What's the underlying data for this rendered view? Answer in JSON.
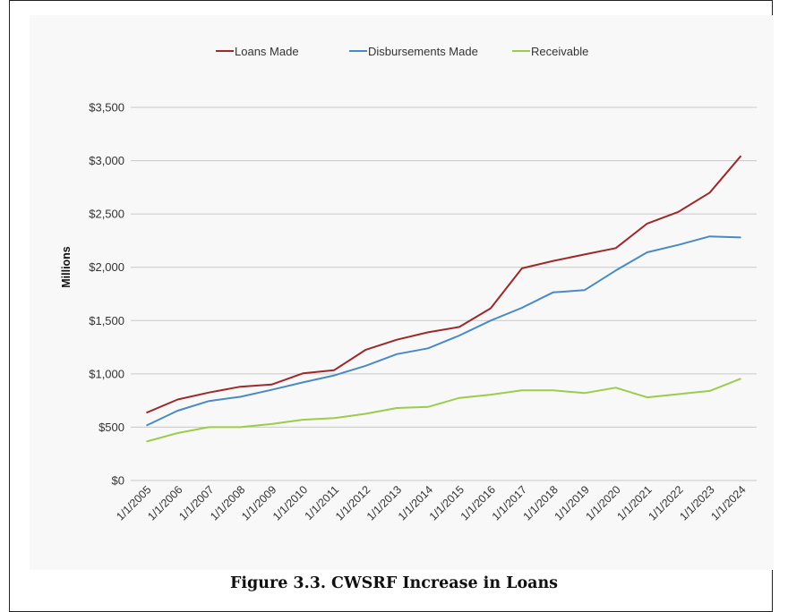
{
  "figure": {
    "caption": "Figure 3.3. CWSRF Increase in Loans"
  },
  "colors": {
    "loans": "#9b2a2a",
    "disbursements": "#4a8ac4",
    "receivable": "#9ccc4a",
    "grid": "#c8c8c8",
    "background": "#f8f8f8"
  },
  "chart_data": {
    "type": "line",
    "title": "",
    "xlabel": "",
    "ylabel": "Millions",
    "x": [
      "1/1/2005",
      "1/1/2006",
      "1/1/2007",
      "1/1/2008",
      "1/1/2009",
      "1/1/2010",
      "1/1/2011",
      "1/1/2012",
      "1/1/2013",
      "1/1/2014",
      "1/1/2015",
      "1/1/2016",
      "1/1/2017",
      "1/1/2018",
      "1/1/2019",
      "1/1/2020",
      "1/1/2021",
      "1/1/2022",
      "1/1/2023",
      "1/1/2024"
    ],
    "ylim": [
      0,
      3500
    ],
    "yticks": [
      0,
      500,
      1000,
      1500,
      2000,
      2500,
      3000,
      3500
    ],
    "yticklabels": [
      "$0",
      "$500",
      "$1,000",
      "$1,500",
      "$2,000",
      "$2,500",
      "$3,000",
      "$3,500"
    ],
    "grid": true,
    "legend_position": "top",
    "series": [
      {
        "name": "Loans Made",
        "color_key": "loans",
        "values": [
          635,
          760,
          825,
          880,
          900,
          1005,
          1035,
          1225,
          1320,
          1390,
          1440,
          1615,
          1990,
          2060,
          2120,
          2180,
          2410,
          2520,
          2700,
          3045
        ]
      },
      {
        "name": "Disbursements Made",
        "color_key": "disbursements",
        "values": [
          515,
          655,
          745,
          785,
          850,
          920,
          985,
          1075,
          1185,
          1240,
          1360,
          1500,
          1620,
          1765,
          1785,
          1970,
          2140,
          2210,
          2290,
          2280
        ]
      },
      {
        "name": "Receivable",
        "color_key": "receivable",
        "values": [
          365,
          445,
          500,
          500,
          530,
          570,
          585,
          625,
          680,
          690,
          775,
          805,
          845,
          845,
          820,
          870,
          780,
          810,
          840,
          955
        ]
      }
    ]
  }
}
